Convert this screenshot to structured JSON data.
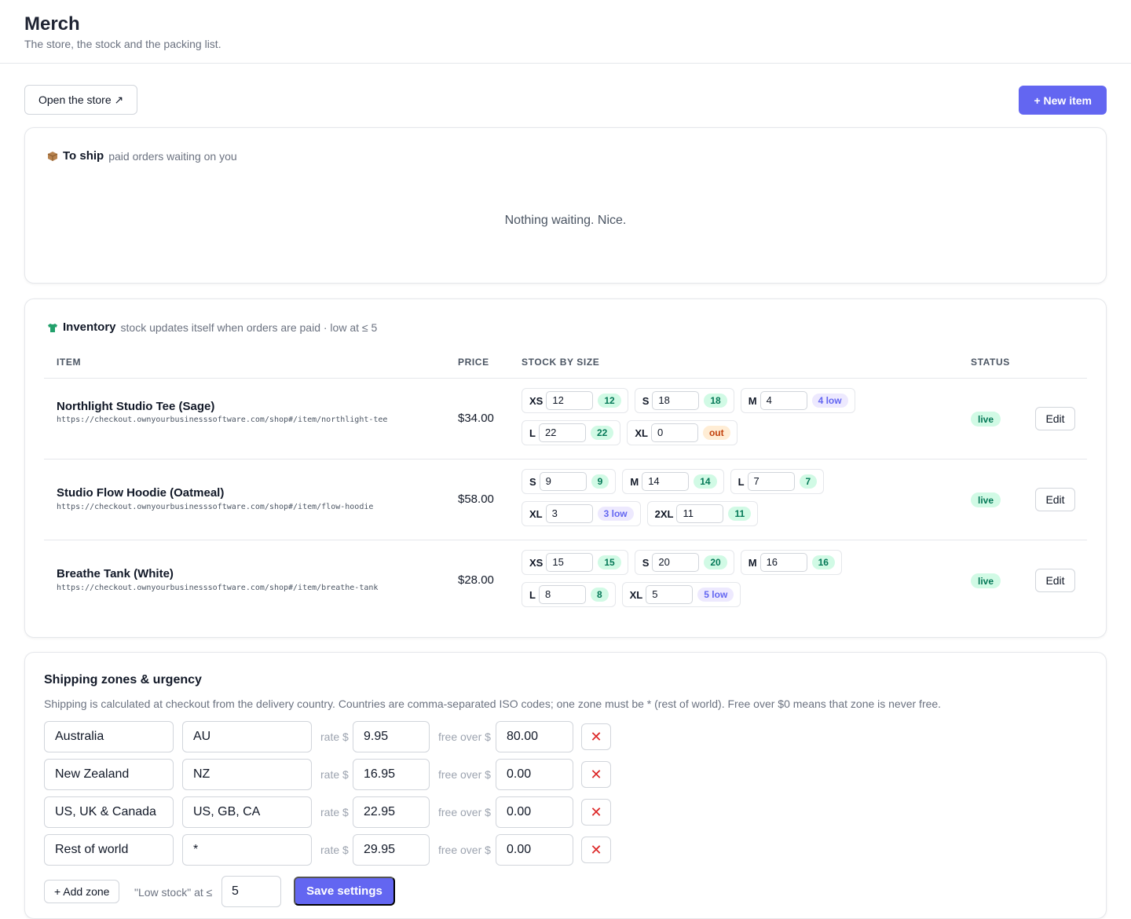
{
  "header": {
    "title": "Merch",
    "subtitle": "The store, the stock and the packing list."
  },
  "toolbar": {
    "open_store": "Open the store ↗",
    "new_item": "+ New item"
  },
  "to_ship": {
    "title": "To ship",
    "subtitle": "paid orders waiting on you",
    "empty": "Nothing waiting. Nice.",
    "icon": "package-icon"
  },
  "inventory": {
    "title": "Inventory",
    "subtitle": "stock updates itself when orders are paid · low at ≤ 5",
    "icon": "shirt-icon",
    "columns": {
      "item": "ITEM",
      "price": "PRICE",
      "stock": "STOCK BY SIZE",
      "status": "STATUS"
    },
    "edit_label": "Edit",
    "items": [
      {
        "name": "Northlight Studio Tee (Sage)",
        "url": "https://checkout.ownyourbusinesssoftware.com/shop#/item/northlight-tee",
        "price": "$34.00",
        "status": "live",
        "sizes": [
          {
            "size": "XS",
            "qty": "12",
            "badge": "12",
            "state": "ok"
          },
          {
            "size": "S",
            "qty": "18",
            "badge": "18",
            "state": "ok"
          },
          {
            "size": "M",
            "qty": "4",
            "badge": "4 low",
            "state": "low"
          },
          {
            "size": "L",
            "qty": "22",
            "badge": "22",
            "state": "ok"
          },
          {
            "size": "XL",
            "qty": "0",
            "badge": "out",
            "state": "out"
          }
        ]
      },
      {
        "name": "Studio Flow Hoodie (Oatmeal)",
        "url": "https://checkout.ownyourbusinesssoftware.com/shop#/item/flow-hoodie",
        "price": "$58.00",
        "status": "live",
        "sizes": [
          {
            "size": "S",
            "qty": "9",
            "badge": "9",
            "state": "ok"
          },
          {
            "size": "M",
            "qty": "14",
            "badge": "14",
            "state": "ok"
          },
          {
            "size": "L",
            "qty": "7",
            "badge": "7",
            "state": "ok"
          },
          {
            "size": "XL",
            "qty": "3",
            "badge": "3 low",
            "state": "low"
          },
          {
            "size": "2XL",
            "qty": "11",
            "badge": "11",
            "state": "ok"
          }
        ]
      },
      {
        "name": "Breathe Tank (White)",
        "url": "https://checkout.ownyourbusinesssoftware.com/shop#/item/breathe-tank",
        "price": "$28.00",
        "status": "live",
        "sizes": [
          {
            "size": "XS",
            "qty": "15",
            "badge": "15",
            "state": "ok"
          },
          {
            "size": "S",
            "qty": "20",
            "badge": "20",
            "state": "ok"
          },
          {
            "size": "M",
            "qty": "16",
            "badge": "16",
            "state": "ok"
          },
          {
            "size": "L",
            "qty": "8",
            "badge": "8",
            "state": "ok"
          },
          {
            "size": "XL",
            "qty": "5",
            "badge": "5 low",
            "state": "low"
          }
        ]
      }
    ]
  },
  "shipping": {
    "title": "Shipping zones & urgency",
    "description": "Shipping is calculated at checkout from the delivery country. Countries are comma-separated ISO codes; one zone must be * (rest of world). Free over $0 means that zone is never free.",
    "rate_label": "rate $",
    "free_label": "free over $",
    "zones": [
      {
        "name": "Australia",
        "codes": "AU",
        "rate": "9.95",
        "free_over": "80.00"
      },
      {
        "name": "New Zealand",
        "codes": "NZ",
        "rate": "16.95",
        "free_over": "0.00"
      },
      {
        "name": "US, UK & Canada",
        "codes": "US, GB, CA",
        "rate": "22.95",
        "free_over": "0.00"
      },
      {
        "name": "Rest of world",
        "codes": "*",
        "rate": "29.95",
        "free_over": "0.00"
      }
    ],
    "add_zone": "+ Add zone",
    "low_stock_label": "\"Low stock\" at ≤",
    "low_stock_value": "5",
    "save": "Save settings"
  },
  "colors": {
    "accent": "#6366f1",
    "ok_bg": "#d1fae5",
    "ok_fg": "#047857",
    "low_bg": "#ede9fe",
    "out_bg": "#ffedd5",
    "out_fg": "#c2410c",
    "delete": "#dc2626"
  }
}
